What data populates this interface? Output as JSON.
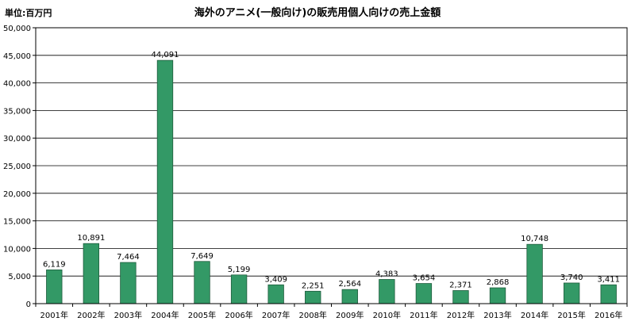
{
  "chart_data": {
    "type": "bar",
    "title": "海外のアニメ(一般向け)の販売用個人向けの売上金額",
    "unit_label": "単位:百万円",
    "xlabel": "",
    "ylabel": "",
    "categories": [
      "2001年",
      "2002年",
      "2003年",
      "2004年",
      "2005年",
      "2006年",
      "2007年",
      "2008年",
      "2009年",
      "2010年",
      "2011年",
      "2012年",
      "2013年",
      "2014年",
      "2015年",
      "2016年"
    ],
    "values": [
      6119,
      10891,
      7464,
      44091,
      7649,
      5199,
      3409,
      2251,
      2564,
      4383,
      3654,
      2371,
      2868,
      10748,
      3740,
      3411
    ],
    "value_labels": [
      "6,119",
      "10,891",
      "7,464",
      "44,091",
      "7,649",
      "5,199",
      "3,409",
      "2,251",
      "2,564",
      "4,383",
      "3,654",
      "2,371",
      "2,868",
      "10,748",
      "3,740",
      "3,411"
    ],
    "ylim": [
      0,
      50000
    ],
    "yticks": [
      0,
      5000,
      10000,
      15000,
      20000,
      25000,
      30000,
      35000,
      40000,
      45000,
      50000
    ],
    "ytick_labels": [
      "0",
      "5,000",
      "10,000",
      "15,000",
      "20,000",
      "25,000",
      "30,000",
      "35,000",
      "40,000",
      "45,000",
      "50,000"
    ],
    "grid": true,
    "bar_color": "#339966",
    "bar_edge_color": "#1f5c3d"
  }
}
